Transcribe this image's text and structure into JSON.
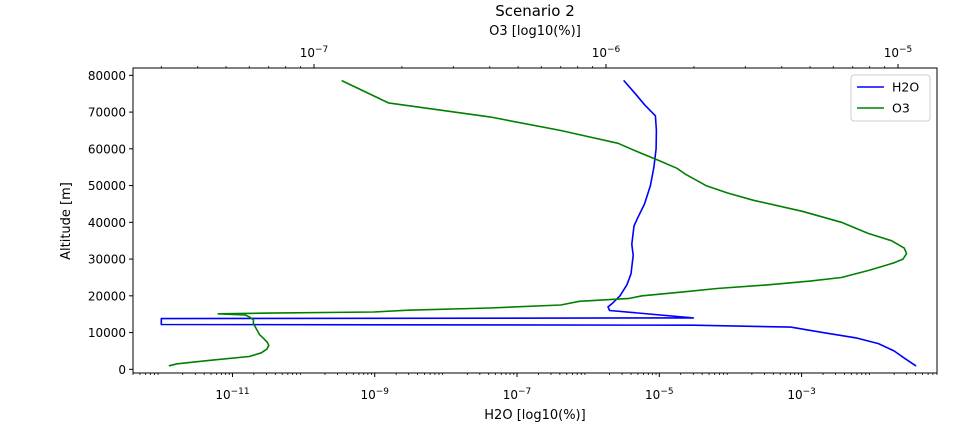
{
  "chart_data": {
    "type": "line",
    "title": "Scenario 2",
    "xlabel_bottom": "H2O [log10(%)]",
    "xlabel_top": "O3 [log10(%)]",
    "ylabel": "Altitude [m]",
    "ylim": [
      -1000,
      82000
    ],
    "yticks": [
      0,
      10000,
      20000,
      30000,
      40000,
      50000,
      60000,
      70000,
      80000
    ],
    "yticklabels": [
      "0",
      "10000",
      "20000",
      "30000",
      "40000",
      "50000",
      "60000",
      "70000",
      "80000"
    ],
    "bottom_axis": {
      "scale": "log",
      "xlim": [
        4e-13,
        0.08
      ],
      "ticks": [
        1e-11,
        1e-09,
        1e-07,
        1e-05,
        0.001
      ],
      "ticklabels": [
        {
          "base": "10",
          "exp": "−11"
        },
        {
          "base": "10",
          "exp": "−9"
        },
        {
          "base": "10",
          "exp": "−7"
        },
        {
          "base": "10",
          "exp": "−5"
        },
        {
          "base": "10",
          "exp": "−3"
        }
      ]
    },
    "top_axis": {
      "scale": "log",
      "xlim": [
        2.4e-08,
        1.36e-05
      ],
      "ticks": [
        1e-07,
        1e-06,
        1e-05
      ],
      "ticklabels": [
        {
          "base": "10",
          "exp": "−7"
        },
        {
          "base": "10",
          "exp": "−6"
        },
        {
          "base": "10",
          "exp": "−5"
        }
      ]
    },
    "legend": {
      "placement": "top-right"
    },
    "series": [
      {
        "name": "H2O",
        "axis": "bottom",
        "color": "#0000ff",
        "points": [
          [
            0.04,
            1000
          ],
          [
            0.028,
            3000
          ],
          [
            0.02,
            5000
          ],
          [
            0.012,
            7000
          ],
          [
            0.006,
            8500
          ],
          [
            0.002,
            10000
          ],
          [
            0.0007,
            11500
          ],
          [
            3e-05,
            12000
          ],
          [
            1e-12,
            12200
          ],
          [
            1e-12,
            13800
          ],
          [
            3e-05,
            14000
          ],
          [
            6e-06,
            15200
          ],
          [
            2e-06,
            16000
          ],
          [
            1.9e-06,
            17000
          ],
          [
            2.2e-06,
            18000
          ],
          [
            2.8e-06,
            20000
          ],
          [
            3.5e-06,
            23000
          ],
          [
            4e-06,
            26000
          ],
          [
            4.3e-06,
            31000
          ],
          [
            4.1e-06,
            34000
          ],
          [
            4.4e-06,
            39000
          ],
          [
            4.9e-06,
            41000
          ],
          [
            6.2e-06,
            45000
          ],
          [
            7.5e-06,
            50000
          ],
          [
            8.4e-06,
            55000
          ],
          [
            9e-06,
            60000
          ],
          [
            9.1e-06,
            65000
          ],
          [
            8.8e-06,
            69000
          ],
          [
            6.2e-06,
            72000
          ],
          [
            4.6e-06,
            75000
          ],
          [
            3.2e-06,
            78500
          ]
        ]
      },
      {
        "name": "O3",
        "axis": "top",
        "color": "#008000",
        "points": [
          [
            3.2e-08,
            1000
          ],
          [
            3.4e-08,
            1500
          ],
          [
            4.5e-08,
            2500
          ],
          [
            6e-08,
            3500
          ],
          [
            6.6e-08,
            4500
          ],
          [
            6.9e-08,
            5500
          ],
          [
            7e-08,
            6500
          ],
          [
            6.9e-08,
            7500
          ],
          [
            6.7e-08,
            8500
          ],
          [
            6.5e-08,
            9500
          ],
          [
            6.4e-08,
            10500
          ],
          [
            6.3e-08,
            11500
          ],
          [
            6.2e-08,
            12500
          ],
          [
            6.2e-08,
            13500
          ],
          [
            6e-08,
            14300
          ],
          [
            5.8e-08,
            14800
          ],
          [
            4.7e-08,
            15100
          ],
          [
            7e-08,
            15300
          ],
          [
            1.6e-07,
            15600
          ],
          [
            2.1e-07,
            16100
          ],
          [
            4e-07,
            16700
          ],
          [
            7e-07,
            17500
          ],
          [
            8.1e-07,
            18500
          ],
          [
            1.2e-06,
            19300
          ],
          [
            1.33e-06,
            20000
          ],
          [
            1.8e-06,
            21000
          ],
          [
            2.4e-06,
            22000
          ],
          [
            3.6e-06,
            23000
          ],
          [
            5e-06,
            24000
          ],
          [
            6.4e-06,
            25000
          ],
          [
            8e-06,
            27000
          ],
          [
            9.7e-06,
            29000
          ],
          [
            1.04e-05,
            30000
          ],
          [
            1.07e-05,
            31500
          ],
          [
            1.05e-05,
            33000
          ],
          [
            9.5e-06,
            35000
          ],
          [
            7.9e-06,
            37000
          ],
          [
            6.4e-06,
            40000
          ],
          [
            4.7e-06,
            43000
          ],
          [
            3.2e-06,
            46000
          ],
          [
            2.6e-06,
            48000
          ],
          [
            2.2e-06,
            50000
          ],
          [
            1.88e-06,
            53000
          ],
          [
            1.75e-06,
            54700
          ],
          [
            1.5e-06,
            57000
          ],
          [
            1.3e-06,
            59000
          ],
          [
            1.1e-06,
            61500
          ],
          [
            8.5e-07,
            63500
          ],
          [
            7e-07,
            65000
          ],
          [
            4e-07,
            68700
          ],
          [
            1.8e-07,
            72500
          ],
          [
            1.25e-07,
            78500
          ]
        ]
      }
    ]
  }
}
